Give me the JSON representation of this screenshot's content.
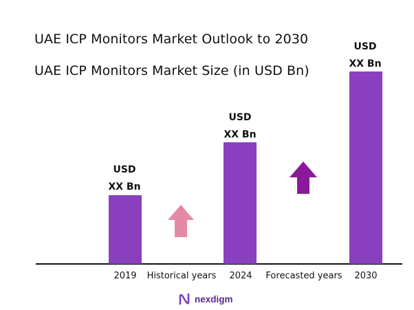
{
  "chart_data": {
    "type": "bar",
    "title": "UAE ICP Monitors Market Outlook to 2030",
    "subtitle": "UAE ICP Monitors Market Size (in USD Bn)",
    "categories": [
      "2019",
      "2024",
      "2030"
    ],
    "data_labels": [
      {
        "line1": "USD",
        "line2": "XX Bn"
      },
      {
        "line1": "USD",
        "line2": "XX Bn"
      },
      {
        "line1": "USD",
        "line2": "XX Bn"
      }
    ],
    "values": [
      1.0,
      1.77,
      2.8
    ],
    "segment_labels": [
      "Historical years",
      "Forecasted years"
    ],
    "grid": false,
    "colors": {
      "bar": "#8a3fbf",
      "arrow_historical": "#e58aa3",
      "arrow_forecast": "#8a1a9a",
      "axis": "#111111"
    }
  },
  "brand": {
    "name": "nexdigm",
    "icon": "nexdigm-logo-icon"
  }
}
